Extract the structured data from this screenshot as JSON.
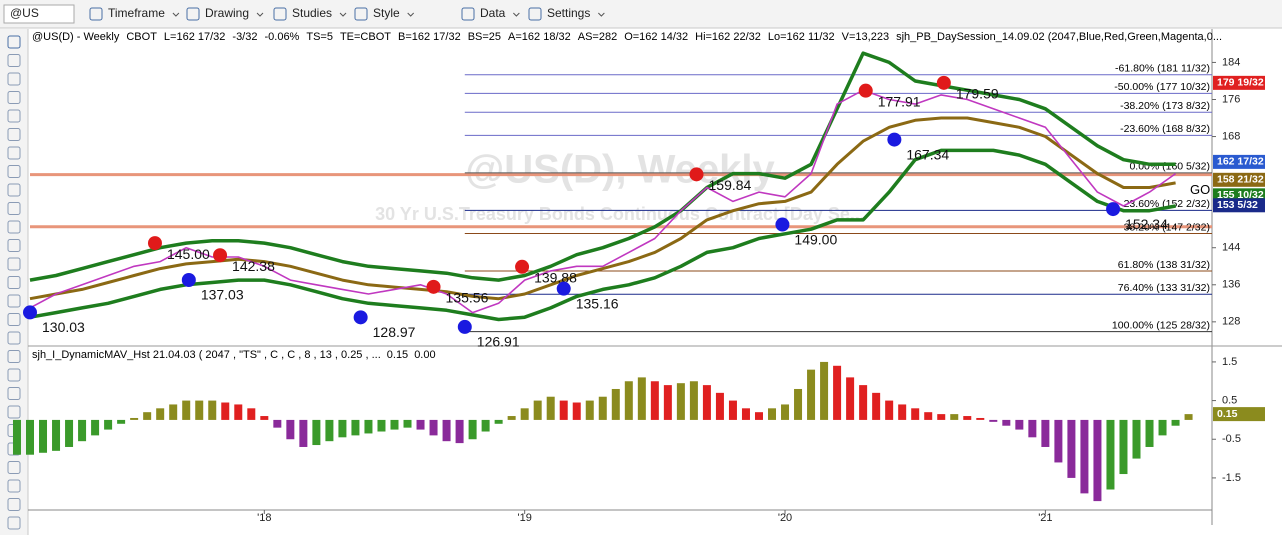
{
  "toolbar": {
    "symbol": "@US",
    "items": [
      "Timeframe",
      "Drawing",
      "Studies",
      "Style",
      "Data",
      "Settings"
    ]
  },
  "header": {
    "fields": [
      {
        "text": "@US(D) - Weekly",
        "color": "#000000"
      },
      {
        "text": "CBOT",
        "color": "#000000"
      },
      {
        "text": "L=162 17/32",
        "color": "#e00000"
      },
      {
        "text": "-3/32",
        "color": "#e00000"
      },
      {
        "text": "-0.06%",
        "color": "#e00000"
      },
      {
        "text": "TS=5",
        "color": "#000000"
      },
      {
        "text": "TE=CBOT",
        "color": "#000000"
      },
      {
        "text": "B=162 17/32",
        "color": "#000000"
      },
      {
        "text": "BS=25",
        "color": "#000000"
      },
      {
        "text": "A=162 18/32",
        "color": "#000000"
      },
      {
        "text": "AS=282",
        "color": "#000000"
      },
      {
        "text": "O=162 14/32",
        "color": "#e00000"
      },
      {
        "text": "Hi=162 22/32",
        "color": "#000000"
      },
      {
        "text": "Lo=162 11/32",
        "color": "#000000"
      },
      {
        "text": "V=13,223",
        "color": "#000000"
      },
      {
        "text": "sjh_PB_DaySession_14.09.02 (2047,Blue,Red,Green,Magenta,0...",
        "color": "#000000"
      }
    ]
  },
  "watermark": {
    "title": "@US(D), Weekly",
    "subtitle": "30 Yr U.S.Treasury Bonds Continuous Contract [Day Se..."
  },
  "chart_data": [
    {
      "type": "line",
      "xlim": [
        2017.1,
        2021.64
      ],
      "xticks": [
        {
          "value": 2018,
          "label": "'18"
        },
        {
          "value": 2019,
          "label": "'19"
        },
        {
          "value": 2020,
          "label": "'20"
        },
        {
          "value": 2021,
          "label": "'21"
        }
      ],
      "ylim": [
        123,
        191
      ],
      "yticks": [
        128,
        136,
        144,
        168,
        176,
        184
      ],
      "x": [
        2017.1,
        2017.2,
        2017.3,
        2017.4,
        2017.5,
        2017.6,
        2017.7,
        2017.8,
        2017.9,
        2018.0,
        2018.1,
        2018.2,
        2018.3,
        2018.4,
        2018.5,
        2018.6,
        2018.7,
        2018.8,
        2018.9,
        2019.0,
        2019.1,
        2019.2,
        2019.3,
        2019.4,
        2019.5,
        2019.6,
        2019.7,
        2019.8,
        2019.9,
        2020.0,
        2020.1,
        2020.2,
        2020.3,
        2020.4,
        2020.5,
        2020.6,
        2020.7,
        2020.8,
        2020.9,
        2021.0,
        2021.1,
        2021.2,
        2021.3,
        2021.4,
        2021.5
      ],
      "series": [
        {
          "color": "#1e7d1e",
          "width": 3.5,
          "values": [
            137,
            138,
            139.5,
            141,
            142.5,
            144,
            145,
            145.5,
            145.5,
            145,
            144,
            142.5,
            141,
            140,
            139.5,
            139,
            138.5,
            137.5,
            137,
            138,
            140,
            142.5,
            144,
            146,
            148.5,
            152,
            157,
            160,
            160,
            159,
            162,
            174,
            186,
            184,
            180,
            179,
            178,
            177,
            176,
            174,
            170,
            166,
            163,
            162,
            162
          ]
        },
        {
          "color": "#1e7d1e",
          "width": 3.5,
          "values": [
            129,
            130,
            131,
            132,
            133.5,
            135,
            136,
            136.5,
            137,
            137,
            136,
            134.5,
            133,
            132,
            131.5,
            131,
            130.5,
            129.5,
            128.5,
            129,
            131,
            133.5,
            135,
            136,
            137.5,
            140,
            143,
            144,
            146,
            147,
            148,
            150,
            150,
            156,
            163,
            165,
            165,
            165,
            164,
            162,
            158,
            154,
            152,
            152,
            153
          ]
        },
        {
          "color": "#8b6914",
          "width": 3,
          "values": [
            133,
            134,
            135,
            136.5,
            138,
            139.5,
            140.5,
            141,
            141.5,
            141,
            140,
            138.5,
            137,
            136,
            135.5,
            135,
            134.5,
            133.5,
            133,
            134,
            136,
            138,
            139.5,
            141,
            143,
            146,
            150,
            152,
            153.5,
            154,
            156,
            162,
            167,
            170,
            171.5,
            172,
            172,
            171,
            170,
            168,
            164,
            160,
            157,
            157,
            158
          ]
        },
        {
          "color": "#c038c0",
          "width": 1.6,
          "values": [
            131,
            134,
            136,
            138,
            140,
            141,
            144,
            142,
            142,
            140,
            137,
            136,
            135,
            134,
            135,
            136,
            134,
            130,
            132,
            137,
            139,
            140,
            140,
            143,
            146,
            152,
            157,
            154,
            156,
            155,
            160,
            175,
            178,
            176,
            175,
            177,
            176,
            174,
            172,
            170,
            163,
            156,
            153,
            156,
            160
          ]
        }
      ],
      "lines": [
        {
          "value": 159.78,
          "color": "#e8957a"
        },
        {
          "value": 148.54,
          "color": "#e8957a"
        }
      ],
      "fib_levels": [
        {
          "label": "-61.80% (181 11/32)",
          "value": 181.344,
          "color": "#6a6ac8"
        },
        {
          "label": "-50.00% (177 10/32)",
          "value": 177.3125,
          "color": "#6a6ac8"
        },
        {
          "label": "-38.20% (173 8/32)",
          "value": 173.25,
          "color": "#6a6ac8"
        },
        {
          "label": "-23.60% (168 8/32)",
          "value": 168.25,
          "color": "#6a6ac8"
        },
        {
          "label": "0.00% (160 5/32)",
          "value": 160.156,
          "color": "#555555"
        },
        {
          "label": "23.60% (152 2/32)",
          "value": 152.0625,
          "color": "#1a2a8a"
        },
        {
          "label": "38.20% (147 2/32)",
          "value": 147.0625,
          "color": "#8b4a1a"
        },
        {
          "label": "61.80% (138 31/32)",
          "value": 138.969,
          "color": "#8b4a1a"
        },
        {
          "label": "76.40% (133 31/32)",
          "value": 133.969,
          "color": "#1a2a8a"
        },
        {
          "label": "100.00% (125 28/32)",
          "value": 125.875,
          "color": "#333333"
        }
      ],
      "fib_start": 2018.77,
      "swings": [
        {
          "x": 2017.1,
          "value": 130.03,
          "label": "130.03",
          "color": "#1a1ae0"
        },
        {
          "x": 2017.58,
          "value": 145.0,
          "label": "145.00",
          "color": "#e01a1a"
        },
        {
          "x": 2017.71,
          "value": 137.03,
          "label": "137.03",
          "color": "#1a1ae0"
        },
        {
          "x": 2017.83,
          "value": 142.38,
          "label": "142.38",
          "color": "#e01a1a"
        },
        {
          "x": 2018.37,
          "value": 128.97,
          "label": "128.97",
          "color": "#1a1ae0"
        },
        {
          "x": 2018.65,
          "value": 135.56,
          "label": "135.56",
          "color": "#e01a1a"
        },
        {
          "x": 2018.77,
          "value": 126.91,
          "label": "126.91",
          "color": "#1a1ae0"
        },
        {
          "x": 2018.99,
          "value": 139.88,
          "label": "139.88",
          "color": "#e01a1a"
        },
        {
          "x": 2019.15,
          "value": 135.16,
          "label": "135.16",
          "color": "#1a1ae0"
        },
        {
          "x": 2019.66,
          "value": 159.84,
          "label": "159.84",
          "color": "#e01a1a"
        },
        {
          "x": 2019.99,
          "value": 149.0,
          "label": "149.00",
          "color": "#1a1ae0"
        },
        {
          "x": 2020.31,
          "value": 177.91,
          "label": "177.91",
          "color": "#e01a1a"
        },
        {
          "x": 2020.42,
          "value": 167.34,
          "label": "167.34",
          "color": "#1a1ae0"
        },
        {
          "x": 2020.61,
          "value": 179.59,
          "label": "179.59",
          "color": "#e01a1a"
        },
        {
          "x": 2021.26,
          "value": 152.34,
          "label": "152.34",
          "color": "#1a1ae0"
        }
      ],
      "price_tags": [
        {
          "label": "179 19/32",
          "value": 179.59,
          "color": "#e02020"
        },
        {
          "label": "162 17/32",
          "value": 162.53,
          "color": "#2a5ad0"
        },
        {
          "label": "158 21/32",
          "value": 158.66,
          "color": "#8b6914"
        },
        {
          "label": "155 10/32",
          "value": 155.31,
          "color": "#1e7d1e"
        },
        {
          "label": "153 5/32",
          "value": 153.16,
          "color": "#1a2a8a"
        }
      ],
      "signal": "GO"
    },
    {
      "type": "bar",
      "title": "sjh_I_DynamicMAV_Hst 21.04.03 ( 2047 , \"TS\" , C , C ,  8 , 13 , 0.25 , ...",
      "legend_values": [
        "0.15",
        "0.00"
      ],
      "xlim": [
        2017.1,
        2021.64
      ],
      "ylim": [
        -2.33,
        1.86
      ],
      "yticks": [
        1.5,
        0.5,
        -0.5,
        -1.5
      ],
      "last_tag": {
        "label": "0.15",
        "value": 0.15
      },
      "colors": {
        "positive_rising": "#8b8b1e",
        "positive_falling": "#e02020",
        "negative_rising": "#3a9a2a",
        "negative_falling": "#8a2a9a"
      },
      "x": [
        2017.05,
        2017.1,
        2017.15,
        2017.2,
        2017.25,
        2017.3,
        2017.35,
        2017.4,
        2017.45,
        2017.5,
        2017.55,
        2017.6,
        2017.65,
        2017.7,
        2017.75,
        2017.8,
        2017.85,
        2017.9,
        2017.95,
        2018.0,
        2018.05,
        2018.1,
        2018.15,
        2018.2,
        2018.25,
        2018.3,
        2018.35,
        2018.4,
        2018.45,
        2018.5,
        2018.55,
        2018.6,
        2018.65,
        2018.7,
        2018.75,
        2018.8,
        2018.85,
        2018.9,
        2018.95,
        2019.0,
        2019.05,
        2019.1,
        2019.15,
        2019.2,
        2019.25,
        2019.3,
        2019.35,
        2019.4,
        2019.45,
        2019.5,
        2019.55,
        2019.6,
        2019.65,
        2019.7,
        2019.75,
        2019.8,
        2019.85,
        2019.9,
        2019.95,
        2020.0,
        2020.05,
        2020.1,
        2020.15,
        2020.2,
        2020.25,
        2020.3,
        2020.35,
        2020.4,
        2020.45,
        2020.5,
        2020.55,
        2020.6,
        2020.65,
        2020.7,
        2020.75,
        2020.8,
        2020.85,
        2020.9,
        2020.95,
        2021.0,
        2021.05,
        2021.1,
        2021.15,
        2021.2,
        2021.25,
        2021.3,
        2021.35,
        2021.4,
        2021.45,
        2021.5,
        2021.55
      ],
      "values": [
        -0.9,
        -0.9,
        -0.85,
        -0.8,
        -0.7,
        -0.55,
        -0.4,
        -0.25,
        -0.1,
        0.05,
        0.2,
        0.3,
        0.4,
        0.5,
        0.5,
        0.5,
        0.45,
        0.4,
        0.3,
        0.1,
        -0.2,
        -0.5,
        -0.7,
        -0.65,
        -0.55,
        -0.45,
        -0.4,
        -0.35,
        -0.3,
        -0.25,
        -0.2,
        -0.25,
        -0.4,
        -0.55,
        -0.6,
        -0.5,
        -0.3,
        -0.1,
        0.1,
        0.3,
        0.5,
        0.6,
        0.5,
        0.45,
        0.5,
        0.6,
        0.8,
        1.0,
        1.1,
        1.0,
        0.9,
        0.95,
        1.0,
        0.9,
        0.7,
        0.5,
        0.3,
        0.2,
        0.3,
        0.4,
        0.8,
        1.3,
        1.5,
        1.4,
        1.1,
        0.9,
        0.7,
        0.5,
        0.4,
        0.3,
        0.2,
        0.15,
        0.15,
        0.1,
        0.05,
        -0.05,
        -0.15,
        -0.25,
        -0.45,
        -0.7,
        -1.1,
        -1.5,
        -1.9,
        -2.1,
        -1.8,
        -1.4,
        -1.0,
        -0.7,
        -0.4,
        -0.15,
        0.15
      ]
    }
  ]
}
